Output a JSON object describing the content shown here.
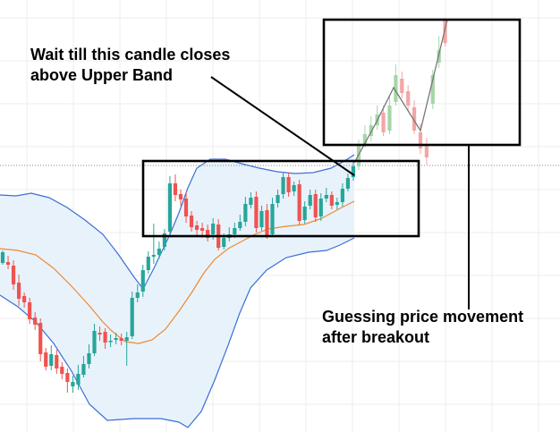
{
  "chart_data": {
    "type": "candlestick",
    "title": "",
    "xlabel": "",
    "ylabel": "",
    "grid": true,
    "colors": {
      "bull": "#26a69a",
      "bear": "#ef5350",
      "bull_faded": "#a5d6a7",
      "bear_faded": "#f3a5a5",
      "band": "#3d6fd6",
      "band_fill": "#e8f2fb",
      "midline": "#f08a2c",
      "box": "#000000",
      "path": "#777777",
      "price_line": "#8a8a8a",
      "grid": "#eeeeee"
    },
    "candles": [
      [
        282,
        294,
        280,
        296,
        "bull"
      ],
      [
        293,
        296,
        286,
        301,
        "bear"
      ],
      [
        297,
        318,
        291,
        324,
        "bear"
      ],
      [
        316,
        334,
        307,
        342,
        "bear"
      ],
      [
        331,
        338,
        327,
        344,
        "bear"
      ],
      [
        338,
        357,
        333,
        362,
        "bear"
      ],
      [
        355,
        363,
        349,
        369,
        "bear"
      ],
      [
        361,
        396,
        356,
        404,
        "bear"
      ],
      [
        394,
        410,
        389,
        414,
        "bear"
      ],
      [
        409,
        396,
        386,
        414,
        "bull"
      ],
      [
        397,
        412,
        391,
        418,
        "bear"
      ],
      [
        410,
        418,
        405,
        424,
        "bear"
      ],
      [
        417,
        427,
        412,
        439,
        "bear"
      ],
      [
        427,
        432,
        420,
        439,
        "bull"
      ],
      [
        430,
        418,
        408,
        436,
        "bull"
      ],
      [
        419,
        407,
        398,
        422,
        "bull"
      ],
      [
        407,
        395,
        385,
        412,
        "bull"
      ],
      [
        395,
        370,
        362,
        398,
        "bull"
      ],
      [
        372,
        374,
        365,
        381,
        "bear"
      ],
      [
        371,
        383,
        367,
        390,
        "bear"
      ],
      [
        382,
        381,
        374,
        388,
        "bull"
      ],
      [
        380,
        378,
        372,
        385,
        "bull"
      ],
      [
        378,
        381,
        373,
        386,
        "bear"
      ],
      [
        381,
        377,
        371,
        409,
        "bull"
      ],
      [
        376,
        333,
        326,
        379,
        "bull"
      ],
      [
        333,
        327,
        318,
        338,
        "bull"
      ],
      [
        326,
        302,
        296,
        332,
        "bull"
      ],
      [
        302,
        287,
        281,
        306,
        "bull"
      ],
      [
        287,
        285,
        250,
        295,
        "bull"
      ],
      [
        285,
        278,
        270,
        289,
        "bull"
      ],
      [
        276,
        261,
        256,
        280,
        "bull"
      ],
      [
        259,
        205,
        197,
        263,
        "bull"
      ],
      [
        205,
        218,
        195,
        225,
        "bear"
      ],
      [
        217,
        223,
        212,
        230,
        "bear"
      ],
      [
        222,
        242,
        215,
        249,
        "bear"
      ],
      [
        241,
        254,
        236,
        259,
        "bear"
      ],
      [
        252,
        257,
        247,
        263,
        "bear"
      ],
      [
        255,
        258,
        249,
        266,
        "bear"
      ],
      [
        257,
        266,
        251,
        270,
        "bear"
      ],
      [
        262,
        250,
        244,
        268,
        "bull"
      ],
      [
        251,
        277,
        245,
        280,
        "bear"
      ],
      [
        276,
        266,
        261,
        279,
        "bull"
      ],
      [
        266,
        262,
        254,
        270,
        "bull"
      ],
      [
        262,
        255,
        249,
        266,
        "bull"
      ],
      [
        255,
        248,
        240,
        258,
        "bull"
      ],
      [
        248,
        228,
        220,
        253,
        "bull"
      ],
      [
        229,
        221,
        215,
        233,
        "bull"
      ],
      [
        220,
        255,
        214,
        260,
        "bear"
      ],
      [
        254,
        236,
        230,
        258,
        "bull"
      ],
      [
        235,
        263,
        228,
        267,
        "bear"
      ],
      [
        262,
        228,
        221,
        265,
        "bull"
      ],
      [
        227,
        218,
        212,
        232,
        "bull"
      ],
      [
        217,
        198,
        192,
        222,
        "bull"
      ],
      [
        198,
        215,
        193,
        220,
        "bear"
      ],
      [
        214,
        207,
        203,
        219,
        "bull"
      ],
      [
        206,
        247,
        201,
        252,
        "bear"
      ],
      [
        246,
        231,
        225,
        250,
        "bull"
      ],
      [
        230,
        218,
        212,
        234,
        "bull"
      ],
      [
        217,
        243,
        212,
        248,
        "bear"
      ],
      [
        242,
        222,
        216,
        247,
        "bull"
      ],
      [
        222,
        218,
        210,
        226,
        "bull"
      ],
      [
        218,
        230,
        214,
        234,
        "bear"
      ],
      [
        229,
        226,
        221,
        234,
        "bull"
      ],
      [
        226,
        211,
        205,
        231,
        "bull"
      ],
      [
        211,
        199,
        194,
        214,
        "bull"
      ],
      [
        198,
        186,
        180,
        202,
        "bull"
      ]
    ],
    "guess_candles": [
      [
        186,
        162,
        156,
        190,
        "bull"
      ],
      [
        162,
        150,
        140,
        165,
        "bull"
      ],
      [
        152,
        140,
        130,
        158,
        "bull"
      ],
      [
        140,
        128,
        118,
        145,
        "bull"
      ],
      [
        126,
        148,
        118,
        152,
        "bear"
      ],
      [
        146,
        118,
        108,
        150,
        "bull"
      ],
      [
        114,
        84,
        72,
        118,
        "bull"
      ],
      [
        88,
        104,
        80,
        110,
        "bear"
      ],
      [
        102,
        118,
        95,
        124,
        "bear"
      ],
      [
        120,
        146,
        112,
        150,
        "bear"
      ],
      [
        148,
        166,
        138,
        172,
        "bear"
      ],
      [
        162,
        176,
        154,
        184,
        "bear"
      ],
      [
        116,
        84,
        78,
        122,
        "bull"
      ],
      [
        70,
        56,
        40,
        76,
        "bull"
      ],
      [
        48,
        22,
        20,
        52,
        "bear"
      ]
    ],
    "bands": {
      "upper": [
        [
          0,
          218
        ],
        [
          18,
          219
        ],
        [
          35,
          216
        ],
        [
          55,
          221
        ],
        [
          75,
          232
        ],
        [
          95,
          246
        ],
        [
          115,
          262
        ],
        [
          132,
          284
        ],
        [
          150,
          310
        ],
        [
          160,
          323
        ],
        [
          172,
          300
        ],
        [
          190,
          262
        ],
        [
          200,
          238
        ],
        [
          210,
          210
        ],
        [
          220,
          188
        ],
        [
          235,
          178
        ],
        [
          252,
          178
        ],
        [
          270,
          183
        ],
        [
          290,
          188
        ],
        [
          310,
          192
        ],
        [
          330,
          194
        ],
        [
          350,
          193
        ],
        [
          370,
          188
        ],
        [
          385,
          180
        ],
        [
          396,
          173
        ]
      ],
      "lower": [
        [
          0,
          330
        ],
        [
          20,
          343
        ],
        [
          40,
          360
        ],
        [
          60,
          384
        ],
        [
          80,
          415
        ],
        [
          100,
          452
        ],
        [
          120,
          470
        ],
        [
          150,
          468
        ],
        [
          180,
          468
        ],
        [
          200,
          472
        ],
        [
          210,
          478
        ],
        [
          225,
          460
        ],
        [
          240,
          425
        ],
        [
          255,
          386
        ],
        [
          268,
          350
        ],
        [
          280,
          322
        ],
        [
          298,
          302
        ],
        [
          320,
          288
        ],
        [
          345,
          282
        ],
        [
          365,
          280
        ],
        [
          380,
          274
        ],
        [
          396,
          266
        ]
      ],
      "middle": [
        [
          0,
          278
        ],
        [
          20,
          280
        ],
        [
          40,
          285
        ],
        [
          60,
          300
        ],
        [
          80,
          320
        ],
        [
          100,
          342
        ],
        [
          115,
          360
        ],
        [
          125,
          370
        ],
        [
          140,
          382
        ],
        [
          155,
          384
        ],
        [
          170,
          380
        ],
        [
          185,
          368
        ],
        [
          200,
          348
        ],
        [
          215,
          326
        ],
        [
          228,
          305
        ],
        [
          240,
          290
        ],
        [
          255,
          278
        ],
        [
          270,
          270
        ],
        [
          285,
          262
        ],
        [
          300,
          256
        ],
        [
          320,
          253
        ],
        [
          340,
          251
        ],
        [
          360,
          244
        ],
        [
          380,
          233
        ],
        [
          396,
          225
        ]
      ]
    },
    "guess_path": [
      [
        396,
        182
      ],
      [
        420,
        138
      ],
      [
        440,
        98
      ],
      [
        470,
        146
      ],
      [
        500,
        22
      ]
    ],
    "annotations": {
      "consolidation_box": "Wait till this candle closes above Upper Band",
      "breakout_box": "Guessing price movement after breakout"
    }
  },
  "annotation_top_line1": "Wait till this candle closes",
  "annotation_top_line2": "above Upper Band",
  "annotation_bottom_line1": "Guessing price movement",
  "annotation_bottom_line2": "after breakout"
}
